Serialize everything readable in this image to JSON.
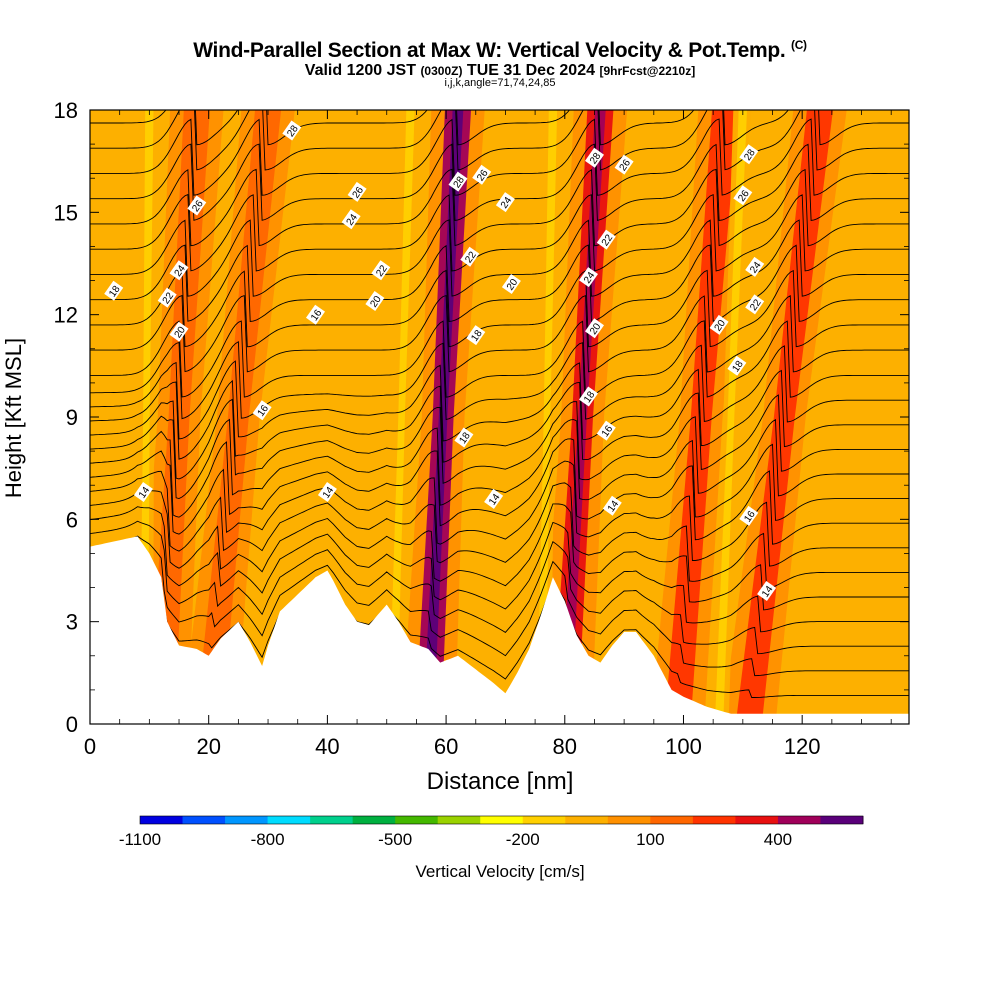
{
  "chart_data": {
    "type": "heatmap",
    "title": "Wind-Parallel Section at Max W: Vertical Velocity & Pot.Temp.",
    "title_mark": "(C)",
    "subtitle_main": "Valid 1200 JST",
    "subtitle_utc": "(0300Z)",
    "subtitle_date": "TUE 31 Dec 2024",
    "subtitle_fcst": "[9hrFcst@2210z]",
    "subtitle_indices": "i,j,k,angle=71,74,24,85",
    "xlabel": "Distance [nm]",
    "ylabel": "Height [Kft MSL]",
    "xlim": [
      0,
      138
    ],
    "ylim": [
      0,
      18
    ],
    "x_ticks": [
      "0",
      "20",
      "40",
      "60",
      "80",
      "100",
      "120"
    ],
    "y_ticks": [
      "0",
      "3",
      "6",
      "9",
      "12",
      "15",
      "18"
    ],
    "colorbar": {
      "label": "Vertical Velocity [cm/s]",
      "tick_labels": [
        "-1100",
        "-800",
        "-500",
        "-200",
        "100",
        "400"
      ],
      "colors": [
        "#0000e0",
        "#0050ff",
        "#0096ff",
        "#00dcff",
        "#00d08c",
        "#00b040",
        "#44b800",
        "#9ad200",
        "#ffff00",
        "#ffd000",
        "#fdb000",
        "#ff9000",
        "#ff6600",
        "#ff3300",
        "#e81010",
        "#a0005a",
        "#5a007a"
      ]
    },
    "updraft_bands": [
      {
        "x_bottom": 12,
        "x_top": 18,
        "w": 100
      },
      {
        "x_bottom": 20,
        "x_top": 30,
        "w": 150
      },
      {
        "x_bottom": 57,
        "x_top": 62,
        "w": 400
      },
      {
        "x_bottom": 80,
        "x_top": 86,
        "w": 300
      },
      {
        "x_bottom": 99,
        "x_top": 107,
        "w": 200
      },
      {
        "x_bottom": 111,
        "x_top": 123,
        "w": 200
      }
    ],
    "downdraft_bands": [
      {
        "x_bottom": 9,
        "x_top": 10,
        "w": -150
      },
      {
        "x_bottom": 51,
        "x_top": 54,
        "w": -200
      },
      {
        "x_bottom": 76,
        "x_top": 78,
        "w": -150
      },
      {
        "x_bottom": 106,
        "x_top": 110,
        "w": -150
      }
    ],
    "terrain_x": [
      0,
      8,
      10,
      12,
      13,
      15,
      18,
      20,
      22,
      25,
      27,
      29,
      30,
      32,
      35,
      38,
      40,
      41,
      43,
      45,
      47,
      50,
      52,
      54,
      57,
      59,
      62,
      65,
      68,
      70,
      72,
      74,
      76,
      78,
      80,
      82,
      84,
      86,
      88,
      90,
      92,
      95,
      98,
      100,
      104,
      108,
      112,
      116,
      120,
      125,
      130,
      138
    ],
    "terrain_y": [
      5.2,
      5.5,
      5.0,
      4.3,
      3.0,
      2.3,
      2.2,
      2.0,
      2.5,
      3.0,
      2.4,
      1.7,
      2.3,
      3.3,
      3.8,
      4.3,
      4.5,
      4.2,
      3.5,
      3.0,
      2.9,
      3.5,
      3.0,
      2.4,
      2.2,
      1.8,
      2.0,
      1.6,
      1.2,
      0.9,
      1.5,
      2.2,
      3.2,
      4.3,
      3.6,
      2.6,
      2.0,
      1.8,
      2.3,
      2.7,
      2.7,
      2.0,
      1.0,
      0.8,
      0.5,
      0.3,
      0.3,
      0.3,
      0.3,
      0.3,
      0.3,
      0.3
    ],
    "theta_contour_labels": [
      {
        "text": "28",
        "x": 34,
        "y": 17.4
      },
      {
        "text": "26",
        "x": 18,
        "y": 15.2
      },
      {
        "text": "24",
        "x": 15,
        "y": 13.3
      },
      {
        "text": "22",
        "x": 13,
        "y": 12.5
      },
      {
        "text": "20",
        "x": 15,
        "y": 11.5
      },
      {
        "text": "18",
        "x": 4,
        "y": 12.7
      },
      {
        "text": "16",
        "x": 29,
        "y": 9.2
      },
      {
        "text": "14",
        "x": 9,
        "y": 6.8
      },
      {
        "text": "26",
        "x": 45,
        "y": 15.6
      },
      {
        "text": "24",
        "x": 44,
        "y": 14.8
      },
      {
        "text": "22",
        "x": 49,
        "y": 13.3
      },
      {
        "text": "20",
        "x": 48,
        "y": 12.4
      },
      {
        "text": "16",
        "x": 38,
        "y": 12.0
      },
      {
        "text": "14",
        "x": 40,
        "y": 6.8
      },
      {
        "text": "28",
        "x": 62,
        "y": 15.9
      },
      {
        "text": "26",
        "x": 66,
        "y": 16.1
      },
      {
        "text": "24",
        "x": 70,
        "y": 15.3
      },
      {
        "text": "22",
        "x": 64,
        "y": 13.7
      },
      {
        "text": "20",
        "x": 71,
        "y": 12.9
      },
      {
        "text": "18",
        "x": 65,
        "y": 11.4
      },
      {
        "text": "18",
        "x": 63,
        "y": 8.4
      },
      {
        "text": "14",
        "x": 68,
        "y": 6.6
      },
      {
        "text": "28",
        "x": 85,
        "y": 16.6
      },
      {
        "text": "26",
        "x": 90,
        "y": 16.4
      },
      {
        "text": "24",
        "x": 84,
        "y": 13.1
      },
      {
        "text": "22",
        "x": 87,
        "y": 14.2
      },
      {
        "text": "20",
        "x": 85,
        "y": 11.6
      },
      {
        "text": "18",
        "x": 84,
        "y": 9.6
      },
      {
        "text": "16",
        "x": 87,
        "y": 8.6
      },
      {
        "text": "14",
        "x": 88,
        "y": 6.4
      },
      {
        "text": "28",
        "x": 111,
        "y": 16.7
      },
      {
        "text": "26",
        "x": 110,
        "y": 15.5
      },
      {
        "text": "24",
        "x": 112,
        "y": 13.4
      },
      {
        "text": "22",
        "x": 112,
        "y": 12.3
      },
      {
        "text": "20",
        "x": 106,
        "y": 11.7
      },
      {
        "text": "18",
        "x": 109,
        "y": 10.5
      },
      {
        "text": "16",
        "x": 111,
        "y": 6.1
      },
      {
        "text": "14",
        "x": 114,
        "y": 3.9
      }
    ]
  }
}
